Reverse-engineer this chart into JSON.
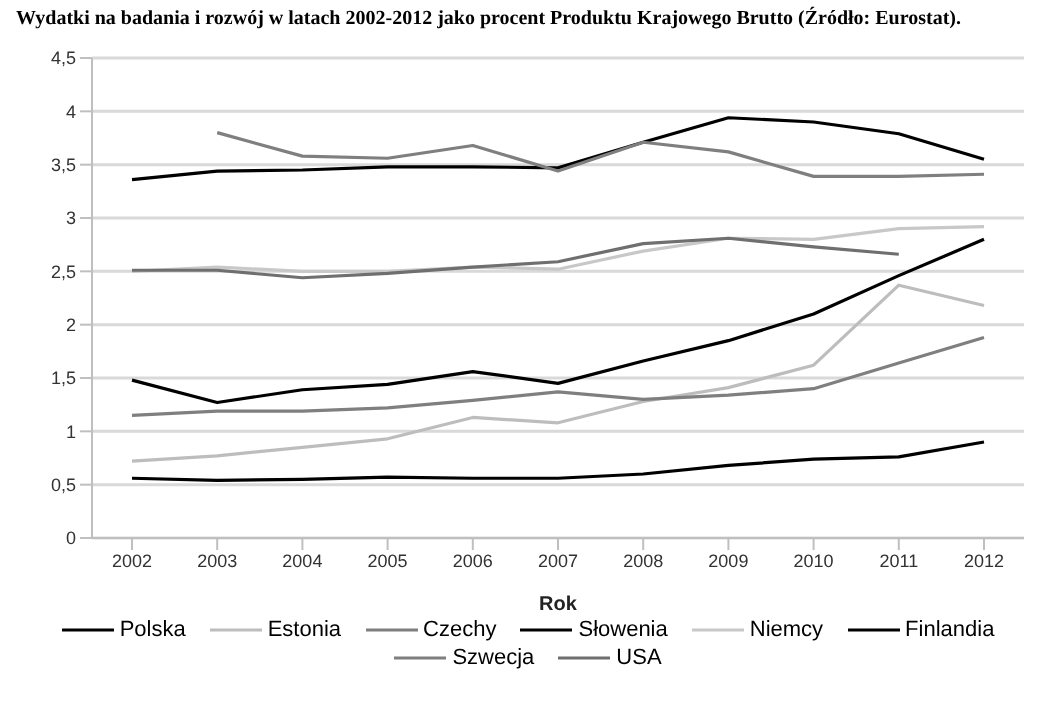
{
  "chart_data": {
    "type": "line",
    "title": "Wydatki na badania i rozwój w latach 2002-2012 jako procent Produktu Krajowego Brutto (Źródło: Eurostat).",
    "xlabel": "Rok",
    "categories": [
      "2002",
      "2003",
      "2004",
      "2005",
      "2006",
      "2007",
      "2008",
      "2009",
      "2010",
      "2011",
      "2012"
    ],
    "series": [
      {
        "name": "Polska",
        "color": "#000000",
        "values": [
          0.56,
          0.54,
          0.55,
          0.57,
          0.56,
          0.56,
          0.6,
          0.68,
          0.74,
          0.76,
          0.9
        ]
      },
      {
        "name": "Estonia",
        "color": "#bdbdbd",
        "values": [
          0.72,
          0.77,
          0.85,
          0.93,
          1.13,
          1.08,
          1.28,
          1.41,
          1.62,
          2.37,
          2.18
        ]
      },
      {
        "name": "Czechy",
        "color": "#7f7f7f",
        "values": [
          1.15,
          1.19,
          1.19,
          1.22,
          1.29,
          1.37,
          1.3,
          1.34,
          1.4,
          1.64,
          1.88
        ]
      },
      {
        "name": "Słowenia",
        "color": "#000000",
        "values": [
          1.48,
          1.27,
          1.39,
          1.44,
          1.56,
          1.45,
          1.66,
          1.85,
          2.1,
          2.46,
          2.8
        ]
      },
      {
        "name": "Niemcy",
        "color": "#c8c8c8",
        "values": [
          2.5,
          2.54,
          2.5,
          2.5,
          2.54,
          2.52,
          2.69,
          2.81,
          2.8,
          2.9,
          2.92
        ]
      },
      {
        "name": "Finlandia",
        "color": "#000000",
        "values": [
          3.36,
          3.44,
          3.45,
          3.48,
          3.48,
          3.47,
          3.71,
          3.94,
          3.9,
          3.79,
          3.55
        ]
      },
      {
        "name": "Szwecja",
        "color": "#7f7f7f",
        "values": [
          null,
          3.8,
          3.58,
          3.56,
          3.68,
          3.44,
          3.71,
          3.62,
          3.39,
          3.39,
          3.41
        ]
      },
      {
        "name": "USA",
        "color": "#6f6f6f",
        "values": [
          2.51,
          2.51,
          2.44,
          2.48,
          2.54,
          2.59,
          2.76,
          2.81,
          2.73,
          2.66,
          null
        ]
      }
    ],
    "ylim": [
      0,
      4.5
    ],
    "yticks": [
      0,
      {
        "value": 0.5,
        "label": "0,5"
      },
      1,
      {
        "value": 1.5,
        "label": "1,5"
      },
      2,
      {
        "value": 2.5,
        "label": "2,5"
      },
      3,
      {
        "value": 3.5,
        "label": "3,5"
      },
      4,
      {
        "value": 4.5,
        "label": "4,5"
      }
    ],
    "grid": "y",
    "legend": "bottom",
    "line_style": "solid"
  }
}
